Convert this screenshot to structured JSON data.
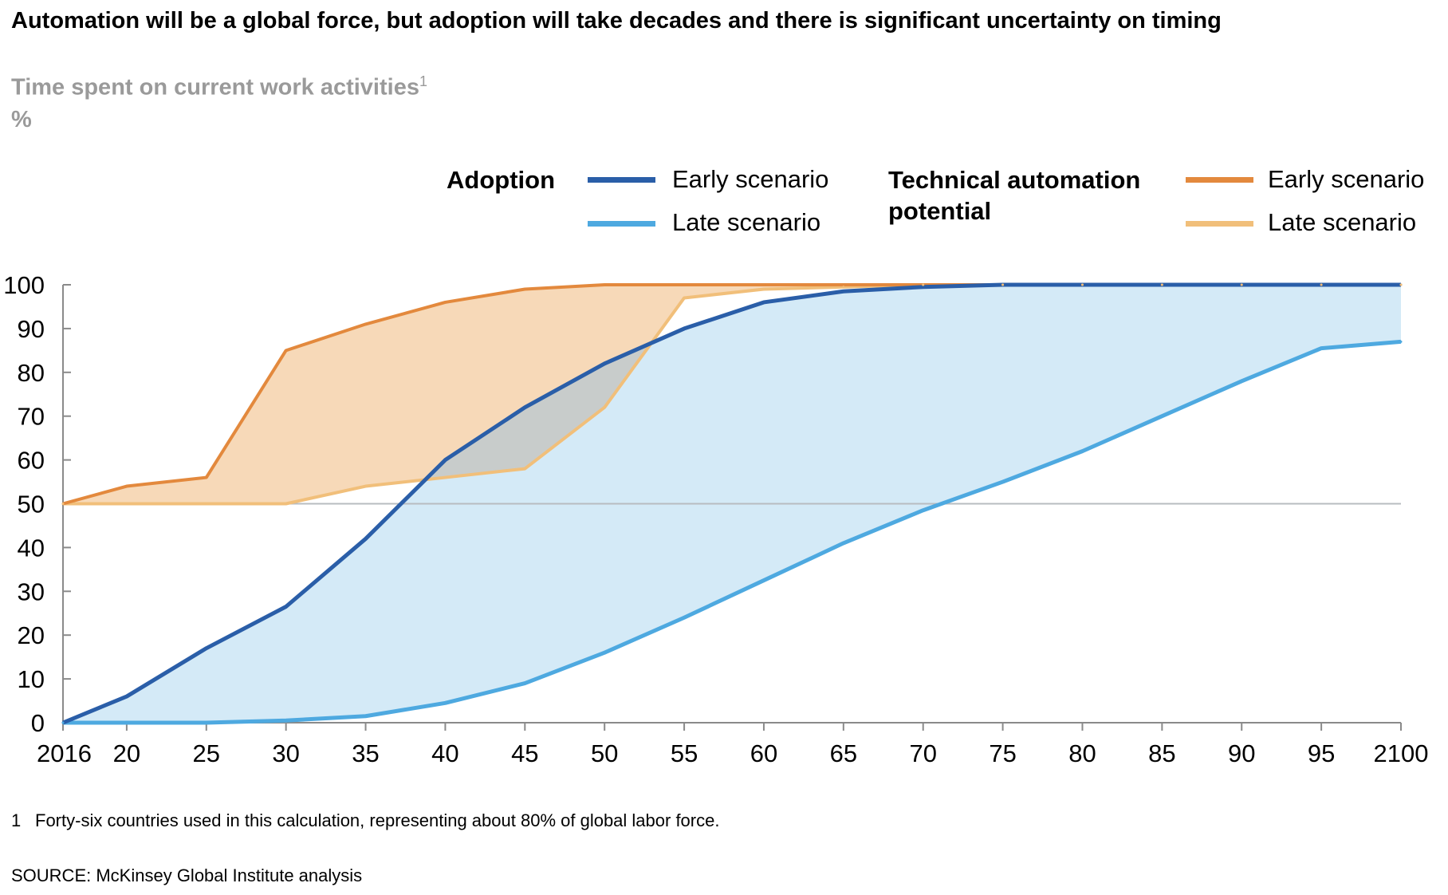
{
  "title": "Automation will be a global force, but adoption will take decades and there is significant uncertainty on timing",
  "subtitle": "Time spent on current work activities",
  "subtitle_note_marker": "1",
  "unit": "%",
  "legend": {
    "adoption_heading": "Adoption",
    "technical_heading_line1": "Technical automation",
    "technical_heading_line2": "potential",
    "early_label": "Early scenario",
    "late_label": "Late scenario"
  },
  "footnote": {
    "marker": "1",
    "text": "Forty-six countries used in this calculation, representing about 80% of global labor force."
  },
  "source": "SOURCE: McKinsey Global Institute analysis",
  "colors": {
    "adoption_early": "#2a5ea8",
    "adoption_late": "#4ea9e0",
    "adoption_band": "#d4eaf7",
    "technical_early": "#e3893d",
    "technical_late": "#f1bf7a",
    "technical_band": "#f7d9b8",
    "overlap": "#c8cccb",
    "reference_line": "#b8bcc0",
    "axis": "#8a8a8a"
  },
  "chart_data": {
    "type": "area",
    "x": [
      2016,
      2020,
      2025,
      2030,
      2035,
      2040,
      2045,
      2050,
      2055,
      2060,
      2065,
      2070,
      2075,
      2080,
      2085,
      2090,
      2095,
      2100
    ],
    "x_tick_labels": [
      "2016",
      "20",
      "25",
      "30",
      "35",
      "40",
      "45",
      "50",
      "55",
      "60",
      "65",
      "70",
      "75",
      "80",
      "85",
      "90",
      "95",
      "2100"
    ],
    "ylim": [
      0,
      100
    ],
    "y_ticks": [
      0,
      10,
      20,
      30,
      40,
      50,
      60,
      70,
      80,
      90,
      100
    ],
    "reference_line_y": 50,
    "grid": false,
    "series": [
      {
        "name": "Early scenario",
        "group": "Adoption",
        "color_key": "adoption_early",
        "values": [
          0,
          6,
          17,
          26.5,
          42,
          60,
          72,
          82,
          90,
          96,
          98.5,
          99.5,
          100,
          100,
          100,
          100,
          100,
          100
        ]
      },
      {
        "name": "Late scenario",
        "group": "Adoption",
        "color_key": "adoption_late",
        "values": [
          0,
          0,
          0,
          0.5,
          1.5,
          4.5,
          9,
          16,
          24,
          32.5,
          41,
          48.5,
          55,
          62,
          70,
          78,
          85.5,
          87
        ]
      },
      {
        "name": "Early scenario",
        "group": "Technical automation potential",
        "color_key": "technical_early",
        "values": [
          50,
          54,
          56,
          85,
          91,
          96,
          99,
          100,
          100,
          100,
          100,
          100,
          100,
          100,
          100,
          100,
          100,
          100
        ]
      },
      {
        "name": "Late scenario",
        "group": "Technical automation potential",
        "color_key": "technical_late",
        "values": [
          50,
          50,
          50,
          50,
          54,
          56,
          58,
          72,
          97,
          99,
          99.5,
          100,
          100,
          100,
          100,
          100,
          100,
          100
        ]
      }
    ]
  }
}
